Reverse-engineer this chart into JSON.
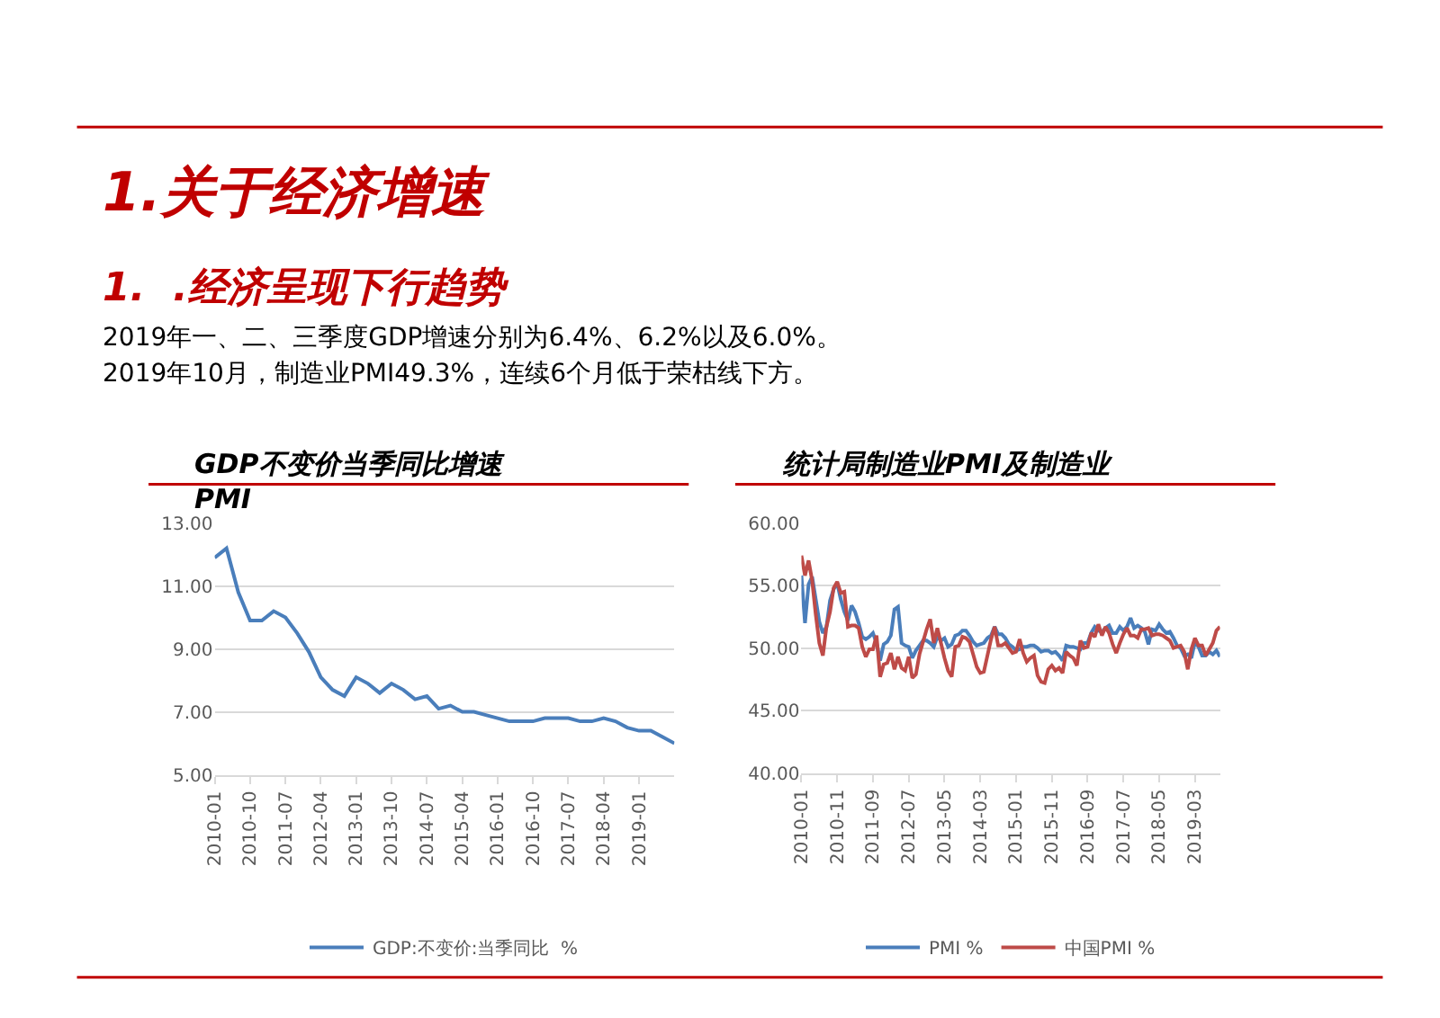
{
  "chart_data": [
    {
      "type": "other",
      "title": "1.关于经济增速",
      "subtitle": "1.  .经济呈现下行趋势",
      "annotations": [
        "2019年一、二、三季度GDP增速分别为6.4%、6.2%以及6.0%。",
        "2019年10月，制造业PMI49.3%，连续6个月低于荣枯线下方。"
      ]
    },
    {
      "type": "line",
      "title": "GDP不变价当季同比增速\nPMI",
      "categories": [
        "2010-01",
        null,
        null,
        "2010-10",
        null,
        null,
        "2011-07",
        null,
        null,
        "2012-04",
        null,
        null,
        "2013-01",
        null,
        null,
        "2013-10",
        null,
        null,
        "2014-07",
        null,
        null,
        "2015-04",
        null,
        null,
        "2016-01",
        null,
        null,
        "2016-10",
        null,
        null,
        "2017-07",
        null,
        null,
        "2018-04",
        null,
        null,
        "2019-01",
        null,
        null,
        null
      ],
      "series": [
        {
          "name": "GDP:不变价:当季同比  %",
          "color": "#4a7ebb",
          "values": [
            11.9,
            12.2,
            10.8,
            9.9,
            9.9,
            10.2,
            10.0,
            9.5,
            8.9,
            8.1,
            7.7,
            7.5,
            8.1,
            7.9,
            7.6,
            7.9,
            7.7,
            7.4,
            7.5,
            7.1,
            7.2,
            7.0,
            7.0,
            6.9,
            6.8,
            6.7,
            6.7,
            6.7,
            6.8,
            6.8,
            6.8,
            6.7,
            6.7,
            6.8,
            6.7,
            6.5,
            6.4,
            6.4,
            6.2,
            6.0
          ]
        }
      ],
      "ylim": [
        5,
        13
      ],
      "yticks": [
        {
          "value": 5,
          "label": "5.00"
        },
        {
          "value": 7,
          "label": "7.00"
        },
        {
          "value": 9,
          "label": "9.00"
        },
        {
          "value": 11,
          "label": "11.00"
        },
        {
          "value": 13,
          "label": "13.00"
        }
      ],
      "grid": "y",
      "legend": "bottom",
      "marker": "none",
      "line_style": "solid"
    },
    {
      "type": "line",
      "title": "统计局制造业PMI及制造业",
      "categories": [
        "2010-01",
        null,
        null,
        null,
        null,
        null,
        null,
        null,
        null,
        null,
        "2010-11",
        null,
        null,
        null,
        null,
        null,
        null,
        null,
        null,
        null,
        "2011-09",
        null,
        null,
        null,
        null,
        null,
        null,
        null,
        null,
        null,
        "2012-07",
        null,
        null,
        null,
        null,
        null,
        null,
        null,
        null,
        null,
        "2013-05",
        null,
        null,
        null,
        null,
        null,
        null,
        null,
        null,
        null,
        "2014-03",
        null,
        null,
        null,
        null,
        null,
        null,
        null,
        null,
        null,
        "2015-01",
        null,
        null,
        null,
        null,
        null,
        null,
        null,
        null,
        null,
        "2015-11",
        null,
        null,
        null,
        null,
        null,
        null,
        null,
        null,
        null,
        "2016-09",
        null,
        null,
        null,
        null,
        null,
        null,
        null,
        null,
        null,
        "2017-07",
        null,
        null,
        null,
        null,
        null,
        null,
        null,
        null,
        null,
        "2018-05",
        null,
        null,
        null,
        null,
        null,
        null,
        null,
        null,
        null,
        "2019-03",
        null,
        null,
        null,
        null,
        null,
        null,
        null
      ],
      "series": [
        {
          "name": "PMI %",
          "color": "#4a7ebb",
          "values": [
            55.8,
            52.0,
            55.1,
            55.7,
            53.9,
            52.1,
            51.2,
            51.7,
            53.8,
            54.7,
            55.2,
            53.9,
            52.9,
            52.2,
            53.4,
            52.9,
            52.0,
            50.9,
            50.7,
            50.9,
            51.2,
            50.4,
            49.0,
            50.3,
            50.5,
            51.0,
            53.1,
            53.3,
            50.4,
            50.2,
            50.1,
            49.2,
            49.8,
            50.2,
            50.6,
            50.6,
            50.4,
            50.1,
            50.9,
            50.6,
            50.8,
            50.1,
            50.3,
            51.0,
            51.1,
            51.4,
            51.4,
            51.0,
            50.5,
            50.2,
            50.3,
            50.4,
            50.8,
            51.0,
            51.7,
            51.1,
            51.1,
            50.8,
            50.3,
            50.1,
            49.8,
            49.9,
            50.1,
            50.1,
            50.2,
            50.2,
            50.0,
            49.7,
            49.8,
            49.8,
            49.6,
            49.7,
            49.4,
            49.0,
            50.2,
            50.1,
            50.1,
            50.0,
            49.9,
            50.4,
            50.4,
            51.2,
            51.7,
            51.4,
            51.3,
            51.6,
            51.8,
            51.2,
            51.2,
            51.7,
            51.4,
            51.7,
            52.4,
            51.6,
            51.8,
            51.6,
            51.3,
            50.3,
            51.5,
            51.4,
            51.9,
            51.5,
            51.2,
            51.3,
            50.8,
            50.2,
            50.0,
            49.4,
            49.5,
            49.2,
            50.5,
            50.1,
            49.4,
            49.4,
            49.7,
            49.5,
            49.8,
            49.3
          ]
        },
        {
          "name": "中国PMI %",
          "color": "#be4b48",
          "values": [
            57.4,
            55.8,
            57.0,
            55.4,
            52.7,
            50.4,
            49.4,
            51.7,
            52.9,
            54.8,
            55.3,
            54.4,
            54.5,
            51.7,
            51.8,
            51.8,
            51.6,
            50.1,
            49.3,
            49.9,
            49.9,
            51.0,
            47.7,
            48.7,
            48.8,
            49.6,
            48.3,
            49.3,
            48.4,
            48.2,
            49.3,
            47.6,
            47.9,
            49.5,
            50.5,
            51.5,
            52.3,
            50.4,
            51.6,
            50.4,
            49.2,
            48.2,
            47.7,
            50.1,
            50.2,
            50.9,
            50.8,
            50.5,
            49.5,
            48.5,
            48.0,
            48.1,
            49.4,
            50.7,
            51.7,
            50.2,
            50.2,
            50.4,
            50.0,
            49.6,
            49.7,
            50.7,
            49.6,
            48.9,
            49.2,
            49.4,
            47.8,
            47.3,
            47.2,
            48.3,
            48.6,
            48.2,
            48.4,
            48.0,
            49.7,
            49.4,
            49.2,
            48.6,
            50.6,
            50.0,
            50.1,
            51.2,
            50.9,
            51.9,
            51.0,
            51.7,
            51.2,
            50.3,
            49.6,
            50.4,
            51.1,
            51.6,
            51.0,
            51.0,
            50.8,
            51.5,
            51.5,
            51.6,
            51.0,
            51.1,
            51.1,
            51.0,
            50.8,
            50.6,
            50.0,
            50.1,
            50.2,
            49.7,
            48.3,
            49.9,
            50.8,
            50.2,
            50.2,
            49.4,
            49.9,
            50.4,
            51.4,
            51.7
          ]
        }
      ],
      "ylim": [
        40,
        60
      ],
      "yticks": [
        {
          "value": 40,
          "label": "40.00"
        },
        {
          "value": 45,
          "label": "45.00"
        },
        {
          "value": 50,
          "label": "50.00"
        },
        {
          "value": 55,
          "label": "55.00"
        },
        {
          "value": 60,
          "label": "60.00"
        }
      ],
      "grid": "y",
      "legend": "bottom",
      "marker": "none",
      "line_style": "solid"
    }
  ]
}
